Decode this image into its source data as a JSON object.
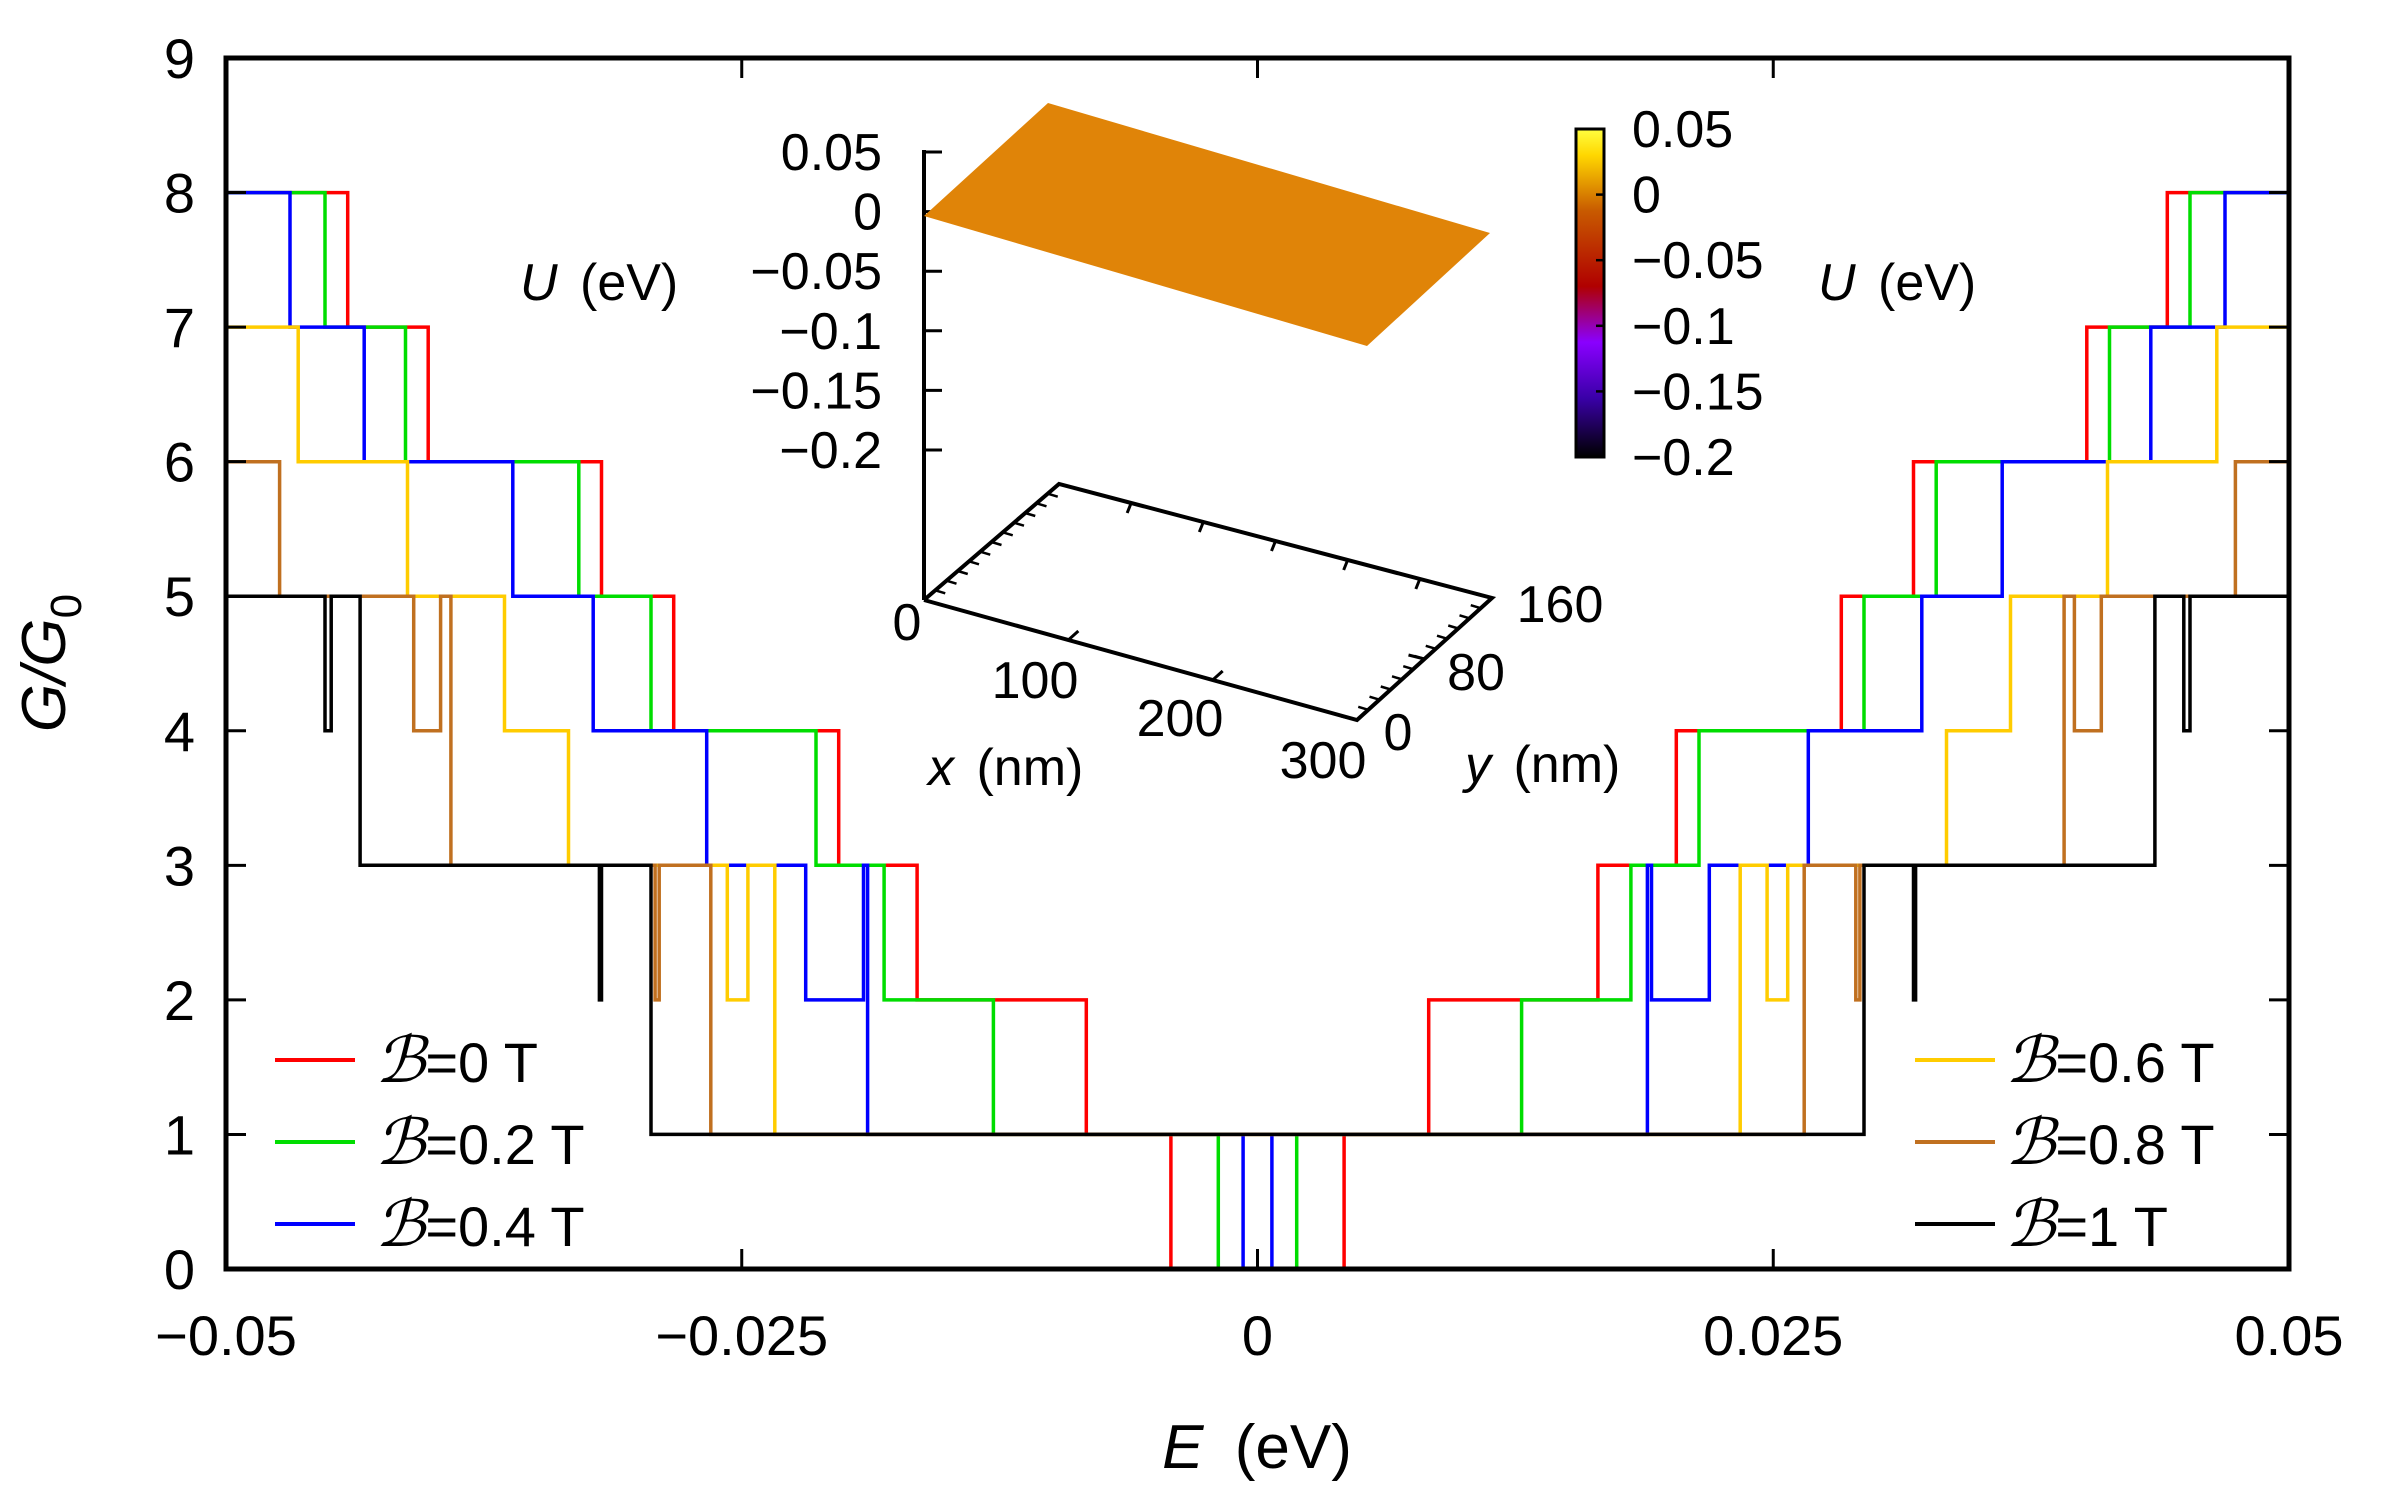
{
  "chart_data": {
    "type": "line",
    "step": true,
    "title": "",
    "xlabel_var": "E",
    "xlabel_unit": "(eV)",
    "ylabel_main": "G/G",
    "ylabel_sub": "0",
    "xlim": [
      -0.05,
      0.05
    ],
    "ylim": [
      0,
      9
    ],
    "xticks": [
      {
        "v": -0.05,
        "label": "−0.05"
      },
      {
        "v": -0.025,
        "label": "−0.025"
      },
      {
        "v": 0,
        "label": "0"
      },
      {
        "v": 0.025,
        "label": "0.025"
      },
      {
        "v": 0.05,
        "label": "0.05"
      }
    ],
    "yticks": [
      {
        "v": 0,
        "label": "0"
      },
      {
        "v": 1,
        "label": "1"
      },
      {
        "v": 2,
        "label": "2"
      },
      {
        "v": 3,
        "label": "3"
      },
      {
        "v": 4,
        "label": "4"
      },
      {
        "v": 5,
        "label": "5"
      },
      {
        "v": 6,
        "label": "6"
      },
      {
        "v": 7,
        "label": "7"
      },
      {
        "v": 8,
        "label": "8"
      },
      {
        "v": 9,
        "label": "9"
      }
    ],
    "legend_symbol": "ℬ",
    "series": [
      {
        "name": "=0 T",
        "color": "#ff0000",
        "legend": "bottom-left",
        "symmetric": true,
        "halfPoints": [
          [
            -0.05,
            8
          ],
          [
            -0.0441,
            8
          ],
          [
            -0.0441,
            7
          ],
          [
            -0.0402,
            7
          ],
          [
            -0.0402,
            6
          ],
          [
            -0.0318,
            6
          ],
          [
            -0.0318,
            5
          ],
          [
            -0.0283,
            5
          ],
          [
            -0.0283,
            4
          ],
          [
            -0.0203,
            4
          ],
          [
            -0.0203,
            3
          ],
          [
            -0.0165,
            3
          ],
          [
            -0.0165,
            2
          ],
          [
            -0.0083,
            2
          ],
          [
            -0.0083,
            1
          ],
          [
            -0.0042,
            1
          ],
          [
            -0.0042,
            0
          ]
        ]
      },
      {
        "name": "=0.2 T",
        "color": "#00dd00",
        "legend": "bottom-left",
        "symmetric": true,
        "halfPoints": [
          [
            -0.05,
            8
          ],
          [
            -0.0452,
            8
          ],
          [
            -0.0452,
            7
          ],
          [
            -0.0413,
            7
          ],
          [
            -0.0413,
            6
          ],
          [
            -0.0329,
            6
          ],
          [
            -0.0329,
            5
          ],
          [
            -0.0294,
            5
          ],
          [
            -0.0294,
            4
          ],
          [
            -0.0214,
            4
          ],
          [
            -0.0214,
            3
          ],
          [
            -0.0181,
            3
          ],
          [
            -0.0181,
            2
          ],
          [
            -0.0128,
            2
          ],
          [
            -0.0128,
            1
          ],
          [
            -0.0019,
            1
          ],
          [
            -0.0019,
            0
          ]
        ]
      },
      {
        "name": "=0.4 T",
        "color": "#0000ff",
        "legend": "bottom-left",
        "symmetric": true,
        "halfPoints": [
          [
            -0.05,
            8
          ],
          [
            -0.0469,
            8
          ],
          [
            -0.0469,
            7
          ],
          [
            -0.0433,
            7
          ],
          [
            -0.0433,
            6
          ],
          [
            -0.0361,
            6
          ],
          [
            -0.0361,
            5
          ],
          [
            -0.0322,
            5
          ],
          [
            -0.0322,
            4
          ],
          [
            -0.0267,
            4
          ],
          [
            -0.0267,
            3
          ],
          [
            -0.0219,
            3
          ],
          [
            -0.0219,
            2
          ],
          [
            -0.0191,
            2
          ],
          [
            -0.0191,
            3
          ],
          [
            -0.0189,
            3
          ],
          [
            -0.0189,
            1
          ],
          [
            -0.0007,
            1
          ],
          [
            -0.0007,
            0
          ]
        ]
      },
      {
        "name": "=0.6 T",
        "color": "#ffcc00",
        "legend": "bottom-right",
        "symmetric": true,
        "halfPoints": [
          [
            -0.05,
            7
          ],
          [
            -0.0465,
            7
          ],
          [
            -0.0465,
            6
          ],
          [
            -0.0412,
            6
          ],
          [
            -0.0412,
            5
          ],
          [
            -0.0365,
            5
          ],
          [
            -0.0365,
            4
          ],
          [
            -0.0334,
            4
          ],
          [
            -0.0334,
            3
          ],
          [
            -0.0257,
            3
          ],
          [
            -0.0257,
            2
          ],
          [
            -0.0247,
            2
          ],
          [
            -0.0247,
            3
          ],
          [
            -0.0234,
            3
          ],
          [
            -0.0234,
            1
          ],
          [
            0,
            1
          ]
        ]
      },
      {
        "name": "=0.8 T",
        "color": "#c07020",
        "legend": "bottom-right",
        "symmetric": true,
        "halfPoints": [
          [
            -0.05,
            6
          ],
          [
            -0.0474,
            6
          ],
          [
            -0.0474,
            5
          ],
          [
            -0.0409,
            5
          ],
          [
            -0.0409,
            4
          ],
          [
            -0.0396,
            4
          ],
          [
            -0.0396,
            5
          ],
          [
            -0.0391,
            5
          ],
          [
            -0.0391,
            3
          ],
          [
            -0.0292,
            3
          ],
          [
            -0.0292,
            2
          ],
          [
            -0.029,
            2
          ],
          [
            -0.029,
            3
          ],
          [
            -0.0265,
            3
          ],
          [
            -0.0265,
            1
          ],
          [
            0,
            1
          ]
        ]
      },
      {
        "name": "=1 T",
        "color": "#000000",
        "legend": "bottom-right",
        "symmetric": true,
        "halfPoints": [
          [
            -0.05,
            5
          ],
          [
            -0.0452,
            5
          ],
          [
            -0.0452,
            4
          ],
          [
            -0.0449,
            4
          ],
          [
            -0.0449,
            5
          ],
          [
            -0.0435,
            5
          ],
          [
            -0.0435,
            3
          ],
          [
            -0.0319,
            3
          ],
          [
            -0.0319,
            2
          ],
          [
            -0.0318,
            2
          ],
          [
            -0.0318,
            3
          ],
          [
            -0.0294,
            3
          ],
          [
            -0.0294,
            1
          ],
          [
            0,
            1
          ]
        ]
      }
    ],
    "inset": {
      "type": "surface",
      "zlabel_var": "U",
      "zlabel_unit": "(eV)",
      "xlabel_var": "x",
      "xlabel_unit": "(nm)",
      "ylabel_var": "y",
      "ylabel_unit": "(nm)",
      "zticks": [
        "0.05",
        "0",
        "−0.05",
        "−0.1",
        "−0.15",
        "−0.2"
      ],
      "zticks_v": [
        0.05,
        0,
        -0.05,
        -0.1,
        -0.15,
        -0.2
      ],
      "xticks": [
        "0",
        "100",
        "200",
        "300"
      ],
      "yticks": [
        "0",
        "80",
        "160"
      ],
      "surface_value": -0.01,
      "colorbar_ticks": [
        "0.05",
        "0",
        "−0.05",
        "−0.1",
        "−0.15",
        "−0.2"
      ],
      "colorbar_ticks_v": [
        0.05,
        0,
        -0.05,
        -0.1,
        -0.15,
        -0.2
      ],
      "colorbar_range": [
        -0.2,
        0.05
      ],
      "colorbar_label_var": "U",
      "colorbar_label_unit": "(eV)",
      "colorbar_stops": [
        "#000000",
        "#3a00a8",
        "#8a00ff",
        "#b00000",
        "#c85a00",
        "#ffd700",
        "#ffff40"
      ],
      "surface_color": "#e08408"
    }
  }
}
